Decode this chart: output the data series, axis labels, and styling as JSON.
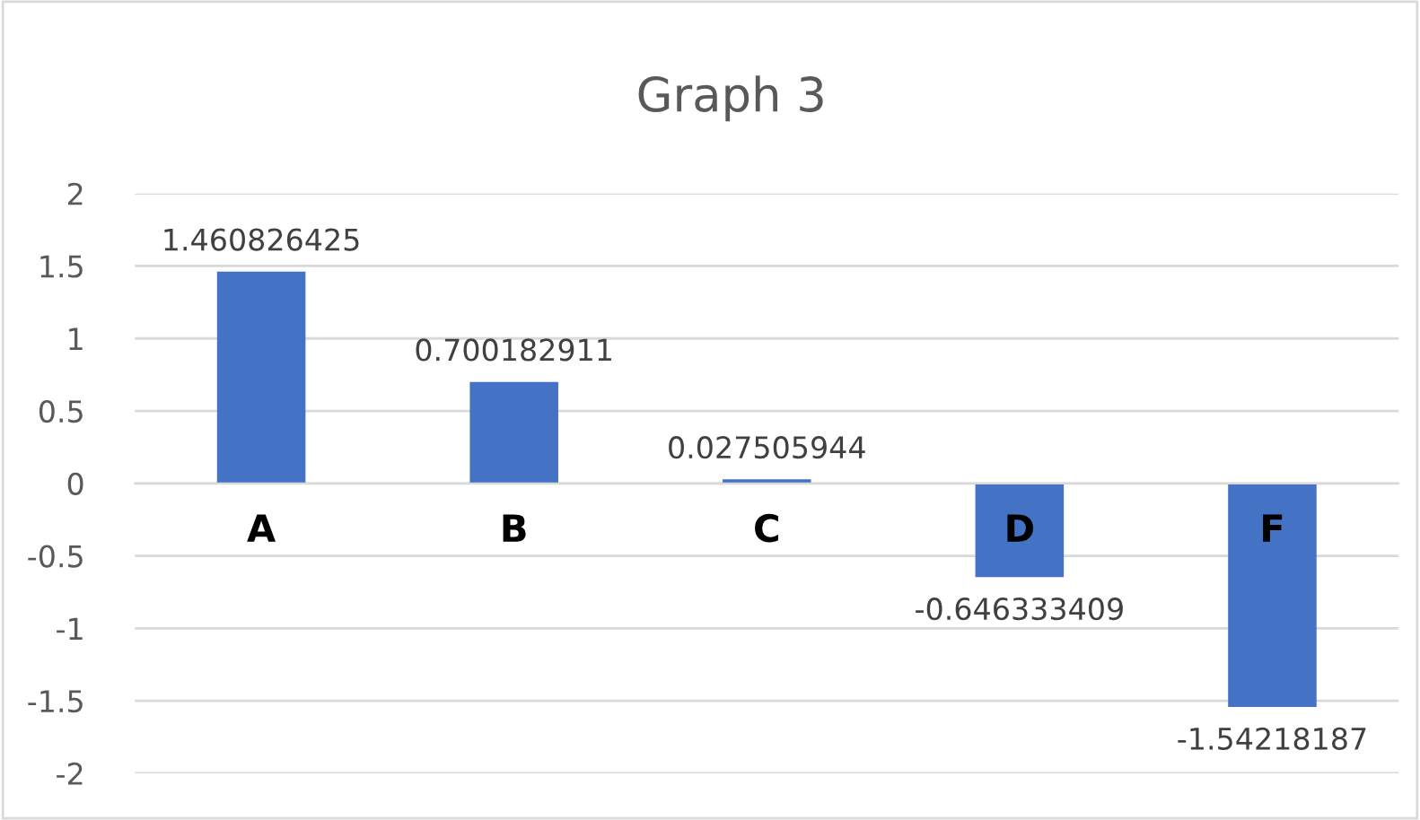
{
  "chart_data": {
    "type": "bar",
    "title": "Graph 3",
    "categories": [
      "A",
      "B",
      "C",
      "D",
      "F"
    ],
    "values": [
      1.460826425,
      0.700182911,
      0.027505944,
      -0.646333409,
      -1.54218187
    ],
    "color": "#4472c4",
    "ylim": [
      -2,
      2
    ],
    "yticks": [
      -2,
      -1.5,
      -1,
      -0.5,
      0,
      0.5,
      1,
      1.5,
      2
    ],
    "grid": "y",
    "data_labels": true
  }
}
